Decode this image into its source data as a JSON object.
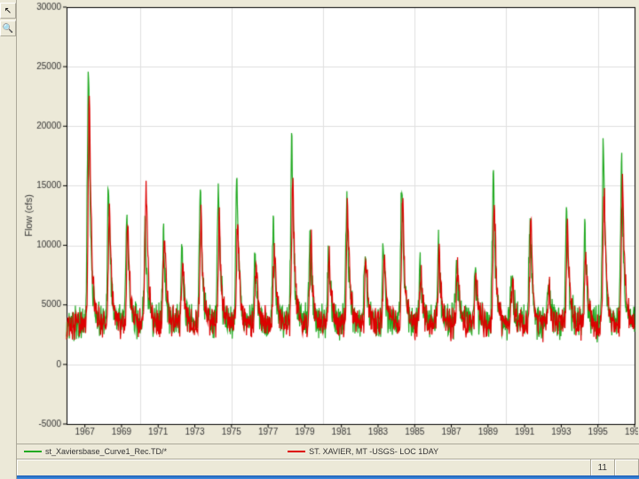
{
  "toolbar": {
    "arrow_label": "↖",
    "zoom_label": "🔍"
  },
  "chart": {
    "type": "line",
    "ylabel": "Flow (cfs)",
    "ylabel_fontsize": 11,
    "xlabel": "",
    "plot_background": "#ffffff",
    "outer_background": "#ece9d8",
    "grid_color": "#e0e0e0",
    "axis_color": "#000000",
    "tick_fontsize": 10,
    "tick_color": "#333333",
    "ylim": [
      -5000,
      30000
    ],
    "ytick_step": 5000,
    "xlim": [
      1966,
      1997
    ],
    "xtick_step": 2,
    "xtick_start": 1967,
    "minor_xtick_step": 1,
    "minor_x_gridlines": [
      1970,
      1975,
      1980,
      1985,
      1990,
      1995
    ],
    "series": [
      {
        "name": "st_Xaviersbase_Curve1_Rec.TD",
        "label": "st_Xaviersbase_Curve1_Rec.TD/*",
        "color": "#22aa22",
        "line_width": 1.2,
        "baseline": 3500,
        "noise_amp": 1200,
        "noise_freq": 55,
        "annual_spikes": [
          {
            "year": 1967.2,
            "peak": 25000
          },
          {
            "year": 1968.3,
            "peak": 15500
          },
          {
            "year": 1969.3,
            "peak": 12500
          },
          {
            "year": 1970.3,
            "peak": 12000
          },
          {
            "year": 1971.3,
            "peak": 11500
          },
          {
            "year": 1972.3,
            "peak": 9500
          },
          {
            "year": 1973.3,
            "peak": 15000
          },
          {
            "year": 1974.3,
            "peak": 15000
          },
          {
            "year": 1975.3,
            "peak": 15500
          },
          {
            "year": 1976.3,
            "peak": 9000
          },
          {
            "year": 1977.3,
            "peak": 12000
          },
          {
            "year": 1978.3,
            "peak": 19000
          },
          {
            "year": 1979.3,
            "peak": 11000
          },
          {
            "year": 1980.3,
            "peak": 9500
          },
          {
            "year": 1981.3,
            "peak": 14000
          },
          {
            "year": 1982.3,
            "peak": 9500
          },
          {
            "year": 1983.3,
            "peak": 10000
          },
          {
            "year": 1984.3,
            "peak": 15500
          },
          {
            "year": 1985.3,
            "peak": 8500
          },
          {
            "year": 1986.3,
            "peak": 10000
          },
          {
            "year": 1987.3,
            "peak": 9000
          },
          {
            "year": 1988.3,
            "peak": 8000
          },
          {
            "year": 1989.3,
            "peak": 16000
          },
          {
            "year": 1990.3,
            "peak": 7500
          },
          {
            "year": 1991.3,
            "peak": 12500
          },
          {
            "year": 1992.3,
            "peak": 7000
          },
          {
            "year": 1993.3,
            "peak": 13500
          },
          {
            "year": 1994.3,
            "peak": 11000
          },
          {
            "year": 1995.3,
            "peak": 18500
          },
          {
            "year": 1996.3,
            "peak": 17000
          }
        ]
      },
      {
        "name": "ST_XAVIER_MT_USGS_LOC_1DAY",
        "label": "ST. XAVIER, MT -USGS- LOC 1DAY",
        "color": "#dd0000",
        "line_width": 1.2,
        "baseline": 3400,
        "noise_amp": 1000,
        "noise_freq": 50,
        "annual_spikes": [
          {
            "year": 1967.25,
            "peak": 23500
          },
          {
            "year": 1968.35,
            "peak": 13000
          },
          {
            "year": 1969.35,
            "peak": 12000
          },
          {
            "year": 1970.35,
            "peak": 15800
          },
          {
            "year": 1971.35,
            "peak": 11000
          },
          {
            "year": 1972.35,
            "peak": 9000
          },
          {
            "year": 1973.35,
            "peak": 13000
          },
          {
            "year": 1974.35,
            "peak": 12000
          },
          {
            "year": 1975.35,
            "peak": 12500
          },
          {
            "year": 1976.35,
            "peak": 8500
          },
          {
            "year": 1977.35,
            "peak": 10000
          },
          {
            "year": 1978.35,
            "peak": 15500
          },
          {
            "year": 1979.35,
            "peak": 10500
          },
          {
            "year": 1980.35,
            "peak": 9000
          },
          {
            "year": 1981.35,
            "peak": 13500
          },
          {
            "year": 1982.35,
            "peak": 9000
          },
          {
            "year": 1983.35,
            "peak": 9500
          },
          {
            "year": 1984.35,
            "peak": 14000
          },
          {
            "year": 1985.35,
            "peak": 8000
          },
          {
            "year": 1986.35,
            "peak": 9500
          },
          {
            "year": 1987.35,
            "peak": 8500
          },
          {
            "year": 1988.35,
            "peak": 7500
          },
          {
            "year": 1989.35,
            "peak": 14500
          },
          {
            "year": 1990.35,
            "peak": 7000
          },
          {
            "year": 1991.35,
            "peak": 12000
          },
          {
            "year": 1992.35,
            "peak": 6500
          },
          {
            "year": 1993.35,
            "peak": 12000
          },
          {
            "year": 1994.35,
            "peak": 10000
          },
          {
            "year": 1995.35,
            "peak": 15000
          },
          {
            "year": 1996.35,
            "peak": 16000
          }
        ]
      }
    ]
  },
  "legend": {
    "items": [
      {
        "label": "st_Xaviersbase_Curve1_Rec.TD/*",
        "color": "#22aa22"
      },
      {
        "label": "ST. XAVIER, MT -USGS- LOC 1DAY",
        "color": "#dd0000"
      }
    ]
  },
  "statusbar": {
    "right_value": "11"
  }
}
